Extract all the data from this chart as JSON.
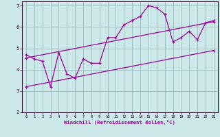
{
  "xlabel": "Windchill (Refroidissement éolien,°C)",
  "xlim": [
    -0.5,
    23.5
  ],
  "ylim": [
    2,
    7.2
  ],
  "xticks": [
    0,
    1,
    2,
    3,
    4,
    5,
    6,
    7,
    8,
    9,
    10,
    11,
    12,
    13,
    14,
    15,
    16,
    17,
    18,
    19,
    20,
    21,
    22,
    23
  ],
  "yticks": [
    2,
    3,
    4,
    5,
    6,
    7
  ],
  "bg_color": "#cce8e8",
  "line_color": "#990099",
  "grid_color": "#99bbbb",
  "line1_x": [
    0,
    1,
    2,
    3,
    4,
    5,
    6,
    7,
    8,
    9,
    10,
    11,
    12,
    13,
    14,
    15,
    16,
    17,
    18,
    19,
    20,
    21,
    22,
    23
  ],
  "line1_y": [
    4.7,
    4.5,
    4.4,
    3.2,
    4.8,
    3.8,
    3.6,
    4.5,
    4.3,
    4.3,
    5.5,
    5.5,
    6.1,
    6.3,
    6.5,
    7.0,
    6.9,
    6.6,
    5.3,
    5.5,
    5.8,
    5.4,
    6.2,
    6.3
  ],
  "line2_x": [
    0,
    23
  ],
  "line2_y": [
    4.55,
    6.25
  ],
  "line3_x": [
    0,
    23
  ],
  "line3_y": [
    3.2,
    4.9
  ]
}
